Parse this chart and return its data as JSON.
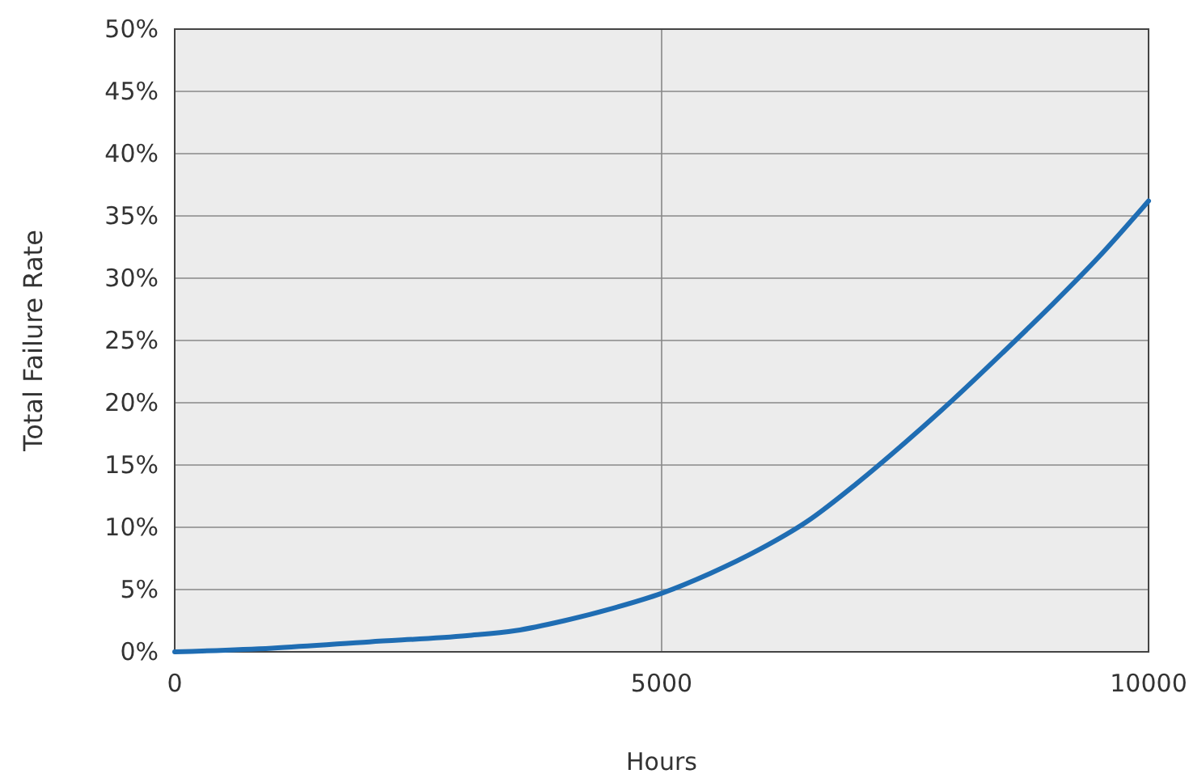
{
  "chart_data": {
    "type": "line",
    "xlabel": "Hours",
    "ylabel": "Total Failure Rate",
    "x": [
      0,
      1000,
      2000,
      3000,
      3500,
      4000,
      4500,
      5000,
      5500,
      6000,
      6500,
      7000,
      7500,
      8000,
      8500,
      9000,
      9500,
      10000
    ],
    "series": [
      {
        "color": "#1f6db3",
        "values": [
          0,
          0.3,
          0.8,
          1.3,
          1.7,
          2.5,
          3.5,
          4.7,
          6.3,
          8.2,
          10.5,
          13.5,
          16.8,
          20.3,
          24,
          27.8,
          31.8,
          36.2
        ]
      }
    ],
    "xlim": [
      0,
      10000
    ],
    "xticks": [
      0,
      5000,
      10000
    ],
    "ylim": [
      0,
      50
    ],
    "yticks": [
      {
        "value": 0,
        "label": "0%"
      },
      {
        "value": 5,
        "label": "5%"
      },
      {
        "value": 10,
        "label": "10%"
      },
      {
        "value": 15,
        "label": "15%"
      },
      {
        "value": 20,
        "label": "20%"
      },
      {
        "value": 25,
        "label": "25%"
      },
      {
        "value": 30,
        "label": "30%"
      },
      {
        "value": 35,
        "label": "35%"
      },
      {
        "value": 40,
        "label": "40%"
      },
      {
        "value": 45,
        "label": "45%"
      },
      {
        "value": 50,
        "label": "50%"
      }
    ],
    "grid": true,
    "marker": "none",
    "line_style": "solid"
  }
}
